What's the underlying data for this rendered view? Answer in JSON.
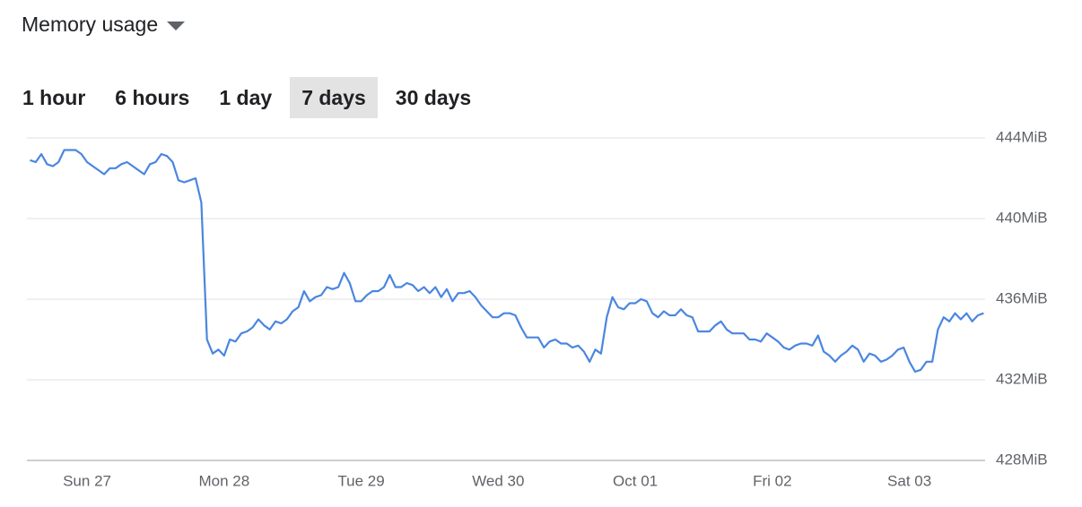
{
  "header": {
    "title": "Memory usage"
  },
  "time_ranges": {
    "options": [
      "1 hour",
      "6 hours",
      "1 day",
      "7 days",
      "30 days"
    ],
    "selected": 3
  },
  "chart_data": {
    "type": "line",
    "categories": [
      null,
      null,
      null,
      null,
      null,
      null,
      null,
      null,
      null,
      null,
      "Sun 27",
      null,
      null,
      null,
      null,
      null,
      null,
      null,
      null,
      null,
      null,
      null,
      null,
      null,
      null,
      null,
      null,
      null,
      null,
      null,
      null,
      null,
      null,
      null,
      "Mon 28",
      null,
      null,
      null,
      null,
      null,
      null,
      null,
      null,
      null,
      null,
      null,
      null,
      null,
      null,
      null,
      null,
      null,
      null,
      null,
      null,
      null,
      null,
      null,
      "Tue 29",
      null,
      null,
      null,
      null,
      null,
      null,
      null,
      null,
      null,
      null,
      null,
      null,
      null,
      null,
      null,
      null,
      null,
      null,
      null,
      null,
      null,
      null,
      null,
      "Wed 30",
      null,
      null,
      null,
      null,
      null,
      null,
      null,
      null,
      null,
      null,
      null,
      null,
      null,
      null,
      null,
      null,
      null,
      null,
      null,
      null,
      null,
      null,
      null,
      "Oct 01",
      null,
      null,
      null,
      null,
      null,
      null,
      null,
      null,
      null,
      null,
      null,
      null,
      null,
      null,
      null,
      null,
      null,
      null,
      null,
      null,
      null,
      null,
      null,
      "Fri 02",
      null,
      null,
      null,
      null,
      null,
      null,
      null,
      null,
      null,
      null,
      null,
      null,
      null,
      null,
      null,
      null,
      null,
      null,
      null,
      null,
      null,
      null,
      null,
      "Sat 03",
      null,
      null,
      null,
      null,
      null,
      null,
      null,
      null,
      null,
      null,
      null,
      null,
      null
    ],
    "series": [
      {
        "color": "#4a86e0",
        "values": [
          442.9,
          442.8,
          443.2,
          442.7,
          442.6,
          442.8,
          443.4,
          443.4,
          443.4,
          443.2,
          442.8,
          442.6,
          442.4,
          442.2,
          442.5,
          442.5,
          442.7,
          442.8,
          442.6,
          442.4,
          442.2,
          442.7,
          442.8,
          443.2,
          443.1,
          442.8,
          441.9,
          441.8,
          441.9,
          442.0,
          440.8,
          434.0,
          433.3,
          433.5,
          433.2,
          434.0,
          433.9,
          434.3,
          434.4,
          434.6,
          435.0,
          434.7,
          434.5,
          434.9,
          434.8,
          435.0,
          435.4,
          435.6,
          436.4,
          435.9,
          436.1,
          436.2,
          436.6,
          436.5,
          436.6,
          437.3,
          436.8,
          435.9,
          435.9,
          436.2,
          436.4,
          436.4,
          436.6,
          437.2,
          436.6,
          436.6,
          436.8,
          436.7,
          436.4,
          436.6,
          436.3,
          436.6,
          436.1,
          436.5,
          435.9,
          436.3,
          436.3,
          436.4,
          436.1,
          435.7,
          435.4,
          435.1,
          435.1,
          435.3,
          435.3,
          435.2,
          434.6,
          434.1,
          434.1,
          434.1,
          433.6,
          433.9,
          434.0,
          433.8,
          433.8,
          433.6,
          433.7,
          433.4,
          432.9,
          433.5,
          433.3,
          435.1,
          436.1,
          435.6,
          435.5,
          435.8,
          435.8,
          436.0,
          435.9,
          435.3,
          435.1,
          435.4,
          435.2,
          435.2,
          435.5,
          435.2,
          435.1,
          434.4,
          434.4,
          434.4,
          434.7,
          434.9,
          434.5,
          434.3,
          434.3,
          434.3,
          434.0,
          434.0,
          433.9,
          434.3,
          434.1,
          433.9,
          433.6,
          433.5,
          433.7,
          433.8,
          433.8,
          433.7,
          434.2,
          433.4,
          433.2,
          432.9,
          433.2,
          433.4,
          433.7,
          433.5,
          432.9,
          433.3,
          433.2,
          432.9,
          433.0,
          433.2,
          433.5,
          433.6,
          432.9,
          432.4,
          432.5,
          432.9,
          432.9,
          434.5,
          435.1,
          434.9,
          435.3,
          435.0,
          435.3,
          434.9,
          435.2,
          435.3
        ]
      }
    ],
    "ylim": [
      428,
      444
    ],
    "yticks": [
      {
        "value": 428,
        "label": "428MiB"
      },
      {
        "value": 432,
        "label": "432MiB"
      },
      {
        "value": 436,
        "label": "436MiB"
      },
      {
        "value": 440,
        "label": "440MiB"
      },
      {
        "value": 444,
        "label": "444MiB"
      }
    ],
    "grid": true
  }
}
